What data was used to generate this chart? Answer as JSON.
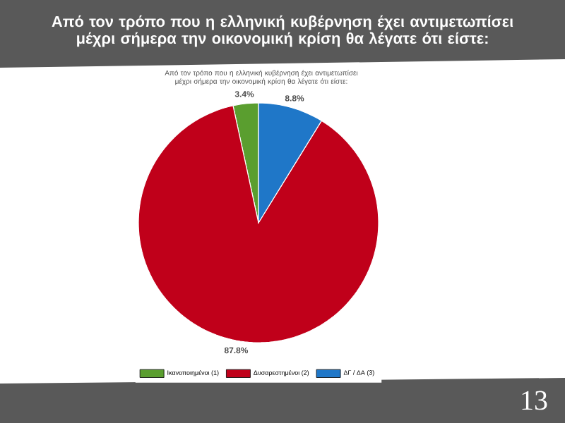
{
  "chart_data": {
    "type": "pie",
    "title": "Από τον τρόπο που η ελληνική κυβέρνηση έχει αντιμετωπίσει μέχρι σήμερα την οικονομική κρίση θα λέγατε ότι είστε:",
    "subtitle": "Από τον τρόπο που η ελληνική κυβέρνηση έχει αντιμετωπίσει μέχρι σήμερα την οικονομική κρίση θα λέγατε ότι είστε:",
    "categories": [
      "Ικανοποιημένοι (1)",
      "Δυσαρεστημένοι (2)",
      "ΔΓ / ΔΑ (3)"
    ],
    "values": [
      3.4,
      87.8,
      8.8
    ],
    "colors": [
      "#5a9e2f",
      "#c0001a",
      "#1f77c8"
    ],
    "value_labels": [
      "3.4%",
      "87.8%",
      "8.8%"
    ],
    "legend": "bottom",
    "annotations": [
      "13"
    ]
  }
}
